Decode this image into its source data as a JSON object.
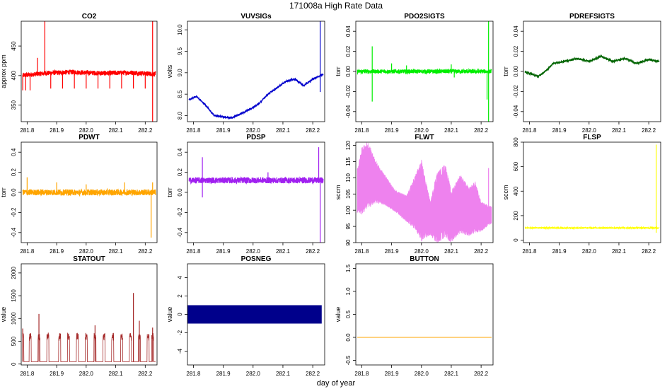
{
  "figure": {
    "title": "171008a   High Rate Data",
    "xlabel": "day of year",
    "xrange": [
      281.78,
      282.24
    ],
    "xticks": [
      281.8,
      281.9,
      282.0,
      282.1,
      282.2
    ],
    "xtick_labels": [
      "281.8",
      "281.9",
      "282.0",
      "282.1",
      "282.2"
    ]
  },
  "chart_data": [
    {
      "type": "line",
      "title": "CO2",
      "ylabel": "approx ppm",
      "color": "#ff0000",
      "ylim": [
        322,
        492
      ],
      "yticks": [
        350,
        400,
        450
      ],
      "ytick_labels": [
        "350",
        "400",
        "450"
      ],
      "baseline": 402,
      "noise": 4,
      "trend": [
        [
          281.78,
          400
        ],
        [
          281.86,
          404
        ],
        [
          281.95,
          406
        ],
        [
          282.05,
          404
        ],
        [
          282.15,
          405
        ],
        [
          282.22,
          403
        ]
      ],
      "spikes": [
        [
          281.785,
          375
        ],
        [
          281.795,
          375
        ],
        [
          281.81,
          375
        ],
        [
          281.835,
          430
        ],
        [
          281.86,
          492
        ],
        [
          281.88,
          378
        ],
        [
          281.92,
          378
        ],
        [
          281.96,
          378
        ],
        [
          282.0,
          378
        ],
        [
          282.04,
          378
        ],
        [
          282.08,
          378
        ],
        [
          282.12,
          378
        ],
        [
          282.16,
          378
        ],
        [
          282.2,
          378
        ],
        [
          282.225,
          322
        ],
        [
          282.225,
          492
        ]
      ]
    },
    {
      "type": "line",
      "title": "VUVSIGs",
      "ylabel": "volts",
      "color": "#0000cc",
      "ylim": [
        7.86,
        10.2
      ],
      "yticks": [
        8.0,
        8.5,
        9.0,
        9.5,
        10.0
      ],
      "ytick_labels": [
        "8.0",
        "8.5",
        "9.0",
        "9.5",
        "10.0"
      ],
      "baseline": 0,
      "noise": 0.02,
      "trend": [
        [
          281.78,
          8.35
        ],
        [
          281.81,
          8.45
        ],
        [
          281.84,
          8.25
        ],
        [
          281.87,
          8.0
        ],
        [
          281.9,
          7.97
        ],
        [
          281.93,
          7.95
        ],
        [
          281.96,
          8.05
        ],
        [
          281.99,
          8.15
        ],
        [
          282.02,
          8.28
        ],
        [
          282.05,
          8.5
        ],
        [
          282.08,
          8.65
        ],
        [
          282.11,
          8.8
        ],
        [
          282.14,
          8.85
        ],
        [
          282.17,
          8.7
        ],
        [
          282.2,
          8.85
        ],
        [
          282.23,
          8.95
        ]
      ],
      "spikes": [
        [
          282.225,
          10.2
        ],
        [
          282.225,
          8.55
        ]
      ]
    },
    {
      "type": "line",
      "title": "PDO2SIGTS",
      "ylabel": "torr",
      "color": "#00ee00",
      "ylim": [
        -0.05,
        0.05
      ],
      "yticks": [
        -0.04,
        -0.02,
        0.0,
        0.02,
        0.04
      ],
      "ytick_labels": [
        "-0.04",
        "-0.02",
        "0.00",
        "0.02",
        "0.04"
      ],
      "baseline": 0.0,
      "noise": 0.002,
      "trend": [],
      "spikes": [
        [
          281.835,
          0.025
        ],
        [
          281.835,
          -0.03
        ],
        [
          281.9,
          0.008
        ],
        [
          281.95,
          0.006
        ],
        [
          282.1,
          0.007
        ],
        [
          282.11,
          -0.006
        ],
        [
          282.225,
          0.05
        ],
        [
          282.225,
          -0.05
        ],
        [
          282.22,
          -0.028
        ]
      ]
    },
    {
      "type": "line",
      "title": "PDREFSIGTS",
      "ylabel": "torr",
      "color": "#006400",
      "ylim": [
        -0.05,
        0.05
      ],
      "yticks": [
        -0.04,
        -0.02,
        0.0,
        0.02,
        0.04
      ],
      "ytick_labels": [
        "-0.04",
        "-0.02",
        "0.00",
        "0.02",
        "0.04"
      ],
      "baseline": 0,
      "noise": 0.0006,
      "trend": [
        [
          281.78,
          0.0
        ],
        [
          281.81,
          -0.003
        ],
        [
          281.83,
          -0.005
        ],
        [
          281.86,
          0.002
        ],
        [
          281.88,
          0.008
        ],
        [
          281.92,
          0.01
        ],
        [
          281.96,
          0.013
        ],
        [
          282.0,
          0.01
        ],
        [
          282.04,
          0.015
        ],
        [
          282.08,
          0.01
        ],
        [
          282.12,
          0.013
        ],
        [
          282.16,
          0.008
        ],
        [
          282.2,
          0.012
        ],
        [
          282.23,
          0.01
        ]
      ],
      "spikes": []
    },
    {
      "type": "line",
      "title": "PDWT",
      "ylabel": "torr",
      "color": "#ffa500",
      "ylim": [
        -0.5,
        0.5
      ],
      "yticks": [
        -0.4,
        -0.2,
        0.0,
        0.2,
        0.4
      ],
      "ytick_labels": [
        "-0.4",
        "-0.2",
        "0.0",
        "0.2",
        "0.4"
      ],
      "baseline": 0.0,
      "noise": 0.03,
      "trend": [],
      "spikes": [
        [
          281.8,
          0.15
        ],
        [
          281.9,
          0.1
        ],
        [
          282.0,
          0.08
        ],
        [
          282.13,
          0.1
        ],
        [
          282.22,
          -0.45
        ],
        [
          282.225,
          0.1
        ]
      ]
    },
    {
      "type": "line",
      "title": "PDSP",
      "ylabel": "torr",
      "color": "#a020f0",
      "ylim": [
        -0.5,
        0.5
      ],
      "yticks": [
        -0.4,
        -0.2,
        0.0,
        0.2,
        0.4
      ],
      "ytick_labels": [
        "-0.4",
        "-0.2",
        "0.0",
        "0.2",
        "0.4"
      ],
      "baseline": 0.12,
      "noise": 0.03,
      "trend": [],
      "spikes": [
        [
          281.83,
          0.35
        ],
        [
          281.83,
          -0.05
        ],
        [
          282.05,
          0.2
        ],
        [
          282.22,
          0.45
        ],
        [
          282.225,
          -0.5
        ]
      ]
    },
    {
      "type": "line",
      "title": "FLWT",
      "ylabel": "sccm",
      "color": "#ee82ee",
      "ylim": [
        90,
        121
      ],
      "yticks": [
        90,
        95,
        100,
        105,
        110,
        115,
        120
      ],
      "ytick_labels": [
        "90",
        "95",
        "100",
        "105",
        "110",
        "115",
        "120"
      ],
      "band": [
        [
          281.78,
          100,
          110
        ],
        [
          281.8,
          100,
          118
        ],
        [
          281.82,
          102,
          120
        ],
        [
          281.85,
          103,
          114
        ],
        [
          281.88,
          102,
          110
        ],
        [
          281.91,
          100,
          106
        ],
        [
          281.95,
          97,
          104
        ],
        [
          281.98,
          95,
          110
        ],
        [
          282.0,
          92,
          114
        ],
        [
          282.03,
          93,
          102
        ],
        [
          282.05,
          91,
          110
        ],
        [
          282.08,
          93,
          113
        ],
        [
          282.1,
          91,
          105
        ],
        [
          282.13,
          94,
          110
        ],
        [
          282.16,
          93,
          106
        ],
        [
          282.18,
          94,
          108
        ],
        [
          282.2,
          94,
          102
        ],
        [
          282.23,
          96,
          101
        ]
      ],
      "spikes": [
        [
          282.225,
          113
        ]
      ]
    },
    {
      "type": "line",
      "title": "FLSP",
      "ylabel": "sccm",
      "color": "#ffff00",
      "ylim": [
        -20,
        800
      ],
      "yticks": [
        0,
        200,
        400,
        600,
        800
      ],
      "ytick_labels": [
        "0",
        "200",
        "400",
        "600",
        "800"
      ],
      "baseline": 100,
      "noise": 4,
      "trend": [],
      "spikes": [
        [
          282.225,
          780
        ],
        [
          282.225,
          60
        ]
      ]
    },
    {
      "type": "line",
      "title": "STATOUT",
      "ylabel": "value",
      "color": "#a52a2a",
      "ylim": [
        -20,
        2200
      ],
      "yticks": [
        0,
        500,
        1000,
        1500,
        2000
      ],
      "ytick_labels": [
        "0",
        "500",
        "1000",
        "1500",
        "2000"
      ],
      "pulses": [
        281.785,
        281.81,
        281.84,
        281.87,
        281.91,
        281.94,
        281.97,
        282.0,
        282.03,
        282.06,
        282.09,
        282.12,
        282.15,
        282.18,
        282.21,
        282.225
      ],
      "pulse_high": 600,
      "pulse_low": 50,
      "spikes": [
        [
          281.785,
          780
        ],
        [
          281.84,
          1100
        ],
        [
          282.03,
          850
        ],
        [
          282.16,
          1560
        ],
        [
          282.18,
          950
        ],
        [
          282.225,
          800
        ]
      ]
    },
    {
      "type": "area",
      "title": "POSNEG",
      "ylabel": "value",
      "color": "#00008b",
      "ylim": [
        -5.5,
        5.5
      ],
      "yticks": [
        -4,
        -2,
        0,
        2,
        4
      ],
      "ytick_labels": [
        "-4",
        "-2",
        "0",
        "2",
        "4"
      ],
      "fill_range": [
        -1,
        1
      ]
    },
    {
      "type": "line",
      "title": "BUTTON",
      "ylabel": "value",
      "color": "#ffa500",
      "ylim": [
        -0.6,
        1.6
      ],
      "yticks": [
        -0.5,
        0.0,
        0.5,
        1.0,
        1.5
      ],
      "ytick_labels": [
        "-0.5",
        "0.0",
        "0.5",
        "1.0",
        "1.5"
      ],
      "constant": 0.0
    }
  ]
}
